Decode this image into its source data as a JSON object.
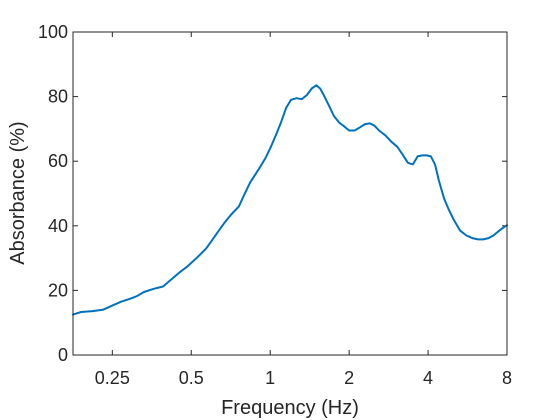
{
  "chart_data": {
    "type": "line",
    "title": "",
    "xlabel": "Frequency (Hz)",
    "ylabel": "Absorbance (%)",
    "x_scale": "log2",
    "xlim": [
      0.177,
      8
    ],
    "ylim": [
      0,
      100
    ],
    "x_ticks": [
      0.25,
      0.5,
      1,
      2,
      4,
      8
    ],
    "x_tick_labels": [
      "0.25",
      "0.5",
      "1",
      "2",
      "4",
      "8"
    ],
    "y_ticks": [
      0,
      20,
      40,
      60,
      80,
      100
    ],
    "y_tick_labels": [
      "0",
      "20",
      "40",
      "60",
      "80",
      "100"
    ],
    "grid": false,
    "box": true,
    "series": [
      {
        "color": "#0072BD",
        "x": [
          0.177,
          0.19,
          0.21,
          0.23,
          0.25,
          0.27,
          0.29,
          0.31,
          0.33,
          0.36,
          0.39,
          0.42,
          0.45,
          0.48,
          0.5,
          0.53,
          0.57,
          0.6,
          0.63,
          0.67,
          0.71,
          0.76,
          0.8,
          0.84,
          0.88,
          0.92,
          0.96,
          1.0,
          1.05,
          1.1,
          1.15,
          1.2,
          1.26,
          1.32,
          1.38,
          1.44,
          1.5,
          1.55,
          1.6,
          1.68,
          1.75,
          1.83,
          1.9,
          2.0,
          2.1,
          2.2,
          2.3,
          2.4,
          2.5,
          2.6,
          2.75,
          2.9,
          3.05,
          3.2,
          3.35,
          3.5,
          3.65,
          3.8,
          3.95,
          4.1,
          4.25,
          4.4,
          4.6,
          4.8,
          5.0,
          5.3,
          5.6,
          5.9,
          6.2,
          6.5,
          6.8,
          7.1,
          7.4,
          7.7,
          8.0
        ],
        "y": [
          12.5,
          13.3,
          13.6,
          14.0,
          15.3,
          16.5,
          17.3,
          18.2,
          19.5,
          20.5,
          21.2,
          23.4,
          25.5,
          27.2,
          28.5,
          30.4,
          33.0,
          35.5,
          38.0,
          41.0,
          43.5,
          46.0,
          50.0,
          53.5,
          56.0,
          58.5,
          61.0,
          64.0,
          68.0,
          72.0,
          76.5,
          79.0,
          79.5,
          79.2,
          80.5,
          82.5,
          83.5,
          82.5,
          80.5,
          77.0,
          74.0,
          72.0,
          71.0,
          69.5,
          69.5,
          70.5,
          71.5,
          71.7,
          71.0,
          69.5,
          68.0,
          66.0,
          64.5,
          62.0,
          59.5,
          59.0,
          61.5,
          61.8,
          61.8,
          61.5,
          59.0,
          54.0,
          48.5,
          45.0,
          42.0,
          38.5,
          37.0,
          36.2,
          35.8,
          35.8,
          36.2,
          37.0,
          38.2,
          39.3,
          40.2
        ]
      }
    ]
  }
}
